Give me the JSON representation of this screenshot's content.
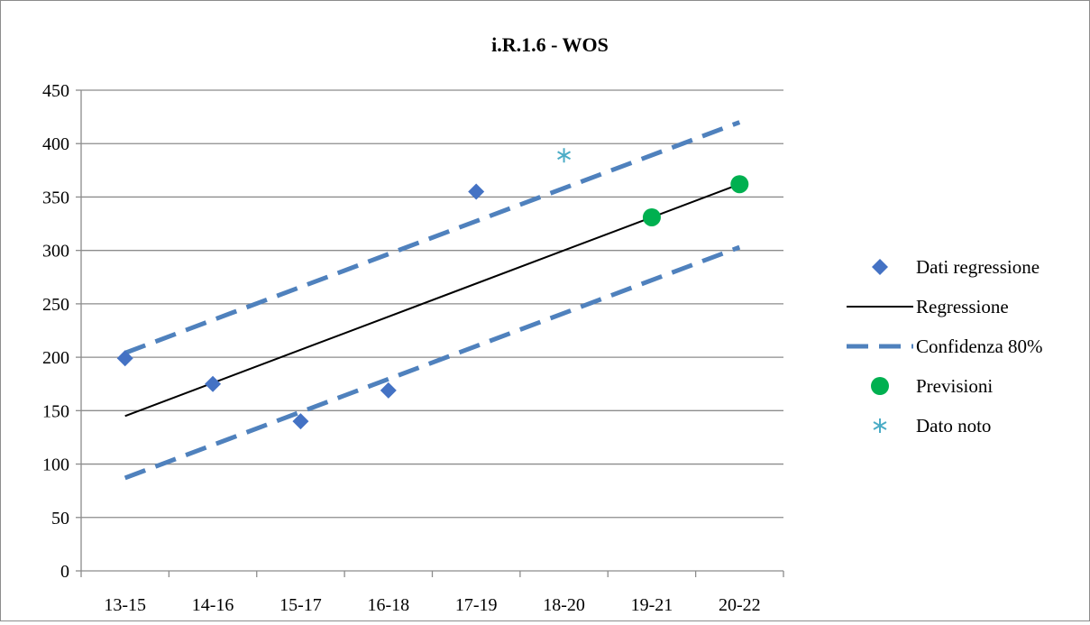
{
  "chart_data": {
    "type": "scatter",
    "title": "i.R.1.6 - WOS",
    "xlabel": "",
    "ylabel": "",
    "categories": [
      "13-15",
      "14-16",
      "15-17",
      "16-18",
      "17-19",
      "18-20",
      "19-21",
      "20-22"
    ],
    "ylim": [
      0,
      450
    ],
    "yticks": [
      0,
      50,
      100,
      150,
      200,
      250,
      300,
      350,
      400,
      450
    ],
    "grid": true,
    "legend_position": "right",
    "series": [
      {
        "name": "Dati regressione",
        "kind": "marker",
        "marker": "diamond",
        "color": "#4472C4",
        "points": [
          {
            "x": "13-15",
            "y": 199
          },
          {
            "x": "14-16",
            "y": 175
          },
          {
            "x": "15-17",
            "y": 140
          },
          {
            "x": "16-18",
            "y": 169
          },
          {
            "x": "17-19",
            "y": 355
          }
        ]
      },
      {
        "name": "Regressione",
        "kind": "line",
        "style": "solid",
        "color": "#000000",
        "points": [
          {
            "x": "13-15",
            "y": 145
          },
          {
            "x": "20-22",
            "y": 362
          }
        ]
      },
      {
        "name": "Confidenza 80%",
        "kind": "line",
        "style": "dashed",
        "color": "#4F81BD",
        "points": [
          {
            "x": "13-15",
            "y": 204
          },
          {
            "x": "20-22",
            "y": 420
          }
        ]
      },
      {
        "name": "",
        "kind": "line",
        "style": "dashed",
        "color": "#4F81BD",
        "points": [
          {
            "x": "13-15",
            "y": 87
          },
          {
            "x": "20-22",
            "y": 303
          }
        ]
      },
      {
        "name": "Previsioni",
        "kind": "marker",
        "marker": "circle",
        "color": "#00B050",
        "points": [
          {
            "x": "19-21",
            "y": 331
          },
          {
            "x": "20-22",
            "y": 362
          }
        ]
      },
      {
        "name": "Dato noto",
        "kind": "marker",
        "marker": "asterisk",
        "color": "#4BACC6",
        "points": [
          {
            "x": "18-20",
            "y": 389
          }
        ]
      }
    ]
  }
}
